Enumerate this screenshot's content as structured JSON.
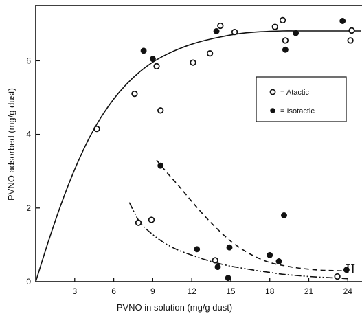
{
  "chart_data": {
    "type": "scatter",
    "title": "",
    "xlabel": "PVNO in solution (mg/g dust)",
    "ylabel": "PVNO adsorbed (mg/g dust)",
    "xlim": [
      0,
      25.2
    ],
    "ylim": [
      0,
      7.5
    ],
    "xticks": [
      3,
      6,
      9,
      12,
      15,
      18,
      21,
      24
    ],
    "yticks": [
      0,
      2,
      4,
      6
    ],
    "grid": false,
    "legend_position": "right-middle",
    "legend": [
      {
        "series": "atactic",
        "label": "= Atactic",
        "marker": "open-circle"
      },
      {
        "series": "isotactic",
        "label": "= Isotactic",
        "marker": "filled-circle"
      }
    ],
    "series": [
      {
        "name": "Atactic",
        "marker": "open-circle",
        "points": [
          [
            4.7,
            4.15
          ],
          [
            7.6,
            5.1
          ],
          [
            9.3,
            5.85
          ],
          [
            9.6,
            4.65
          ],
          [
            12.1,
            5.95
          ],
          [
            13.4,
            6.2
          ],
          [
            14.2,
            6.95
          ],
          [
            15.3,
            6.78
          ],
          [
            18.4,
            6.92
          ],
          [
            19.0,
            7.1
          ],
          [
            19.2,
            6.55
          ],
          [
            24.3,
            6.82
          ],
          [
            24.2,
            6.55
          ],
          [
            7.9,
            1.6
          ],
          [
            8.9,
            1.68
          ],
          [
            13.8,
            0.58
          ],
          [
            23.2,
            0.14
          ]
        ]
      },
      {
        "name": "Isotactic",
        "marker": "filled-circle",
        "points": [
          [
            8.3,
            6.27
          ],
          [
            9.0,
            6.05
          ],
          [
            13.9,
            6.8
          ],
          [
            19.2,
            6.3
          ],
          [
            20.0,
            6.75
          ],
          [
            23.6,
            7.08
          ],
          [
            9.6,
            3.15
          ],
          [
            12.4,
            0.88
          ],
          [
            14.0,
            0.4
          ],
          [
            14.9,
            0.93
          ],
          [
            14.8,
            0.1
          ],
          [
            18.0,
            0.72
          ],
          [
            18.7,
            0.55
          ],
          [
            19.1,
            1.8
          ],
          [
            23.9,
            0.32
          ]
        ]
      }
    ],
    "curves": [
      {
        "id": "curve-I",
        "style": "solid",
        "x": [
          0,
          1,
          2,
          3,
          4,
          5,
          6,
          7,
          8,
          9,
          10,
          11,
          12,
          13,
          14,
          15,
          16,
          17,
          18,
          19,
          20,
          21,
          22,
          23,
          24,
          25
        ],
        "y": [
          0,
          1.12,
          2.15,
          3.05,
          3.82,
          4.45,
          4.96,
          5.37,
          5.7,
          5.96,
          6.16,
          6.32,
          6.45,
          6.55,
          6.63,
          6.7,
          6.75,
          6.78,
          6.8,
          6.81,
          6.81,
          6.81,
          6.81,
          6.81,
          6.81,
          6.81
        ]
      },
      {
        "id": "curve-dashed",
        "style": "dashed",
        "x": [
          9.3,
          10,
          11,
          12,
          13,
          14,
          15,
          16,
          17,
          18,
          19,
          20,
          21,
          22,
          23,
          24
        ],
        "y": [
          3.3,
          3.0,
          2.6,
          2.18,
          1.78,
          1.42,
          1.1,
          0.85,
          0.66,
          0.52,
          0.44,
          0.38,
          0.34,
          0.31,
          0.3,
          0.29
        ]
      },
      {
        "id": "curve-II",
        "style": "dash-dot-dot",
        "x": [
          7.2,
          8,
          9,
          10,
          11,
          12,
          13,
          14,
          15,
          16,
          17,
          18,
          19,
          20,
          21,
          22,
          23,
          24
        ],
        "y": [
          2.15,
          1.62,
          1.28,
          1.03,
          0.85,
          0.72,
          0.6,
          0.5,
          0.42,
          0.36,
          0.3,
          0.25,
          0.2,
          0.17,
          0.14,
          0.12,
          0.1,
          0.08
        ]
      }
    ],
    "curve_labels": [
      {
        "text": "II",
        "x": 24.5,
        "y": 0.3
      }
    ]
  }
}
